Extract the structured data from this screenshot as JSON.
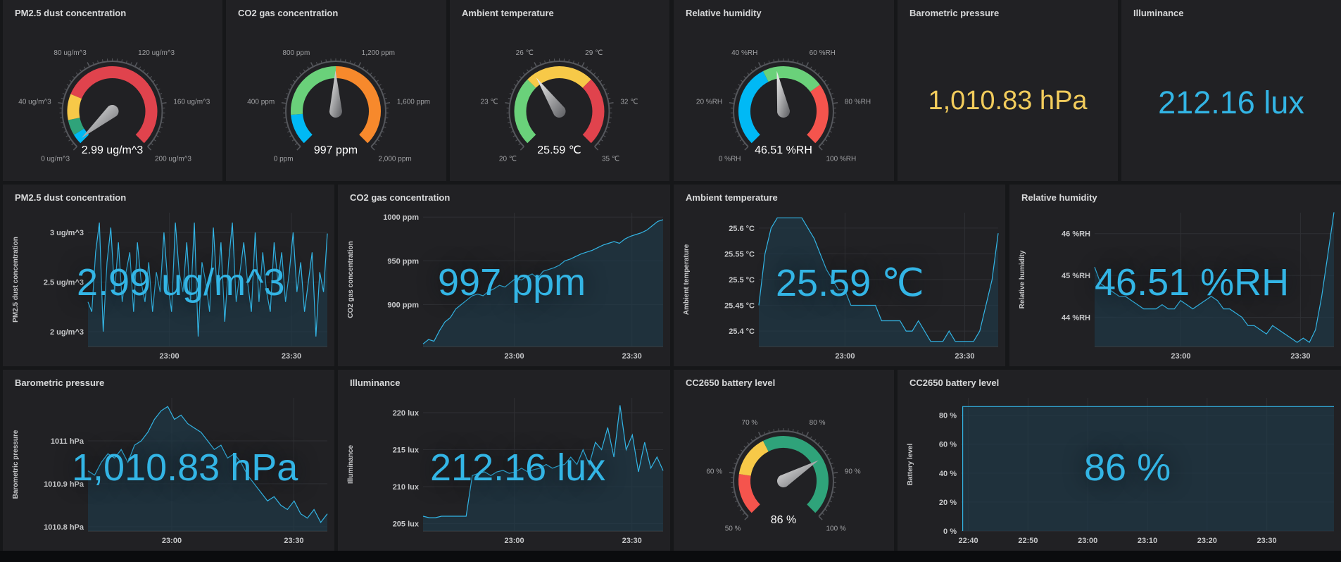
{
  "colors": {
    "panel_bg": "#212124",
    "line": "#33b5e5",
    "fill": "#1f3a4a",
    "text": "#d8d9da",
    "stat_yellow": "#f2cc5c",
    "stat_blue": "#33b5e5"
  },
  "gauges": [
    {
      "title": "PM2.5 dust concentration",
      "value_text": "2.99 ug/m^3",
      "value": 2.99,
      "min": 0,
      "max": 200,
      "ticks": [
        "0 ug/m^3",
        "40 ug/m^3",
        "80 ug/m^3",
        "120 ug/m^3",
        "160 ug/m^3",
        "200 ug/m^3"
      ],
      "bands": [
        {
          "from": 0,
          "to": 10,
          "color": "#00b9f5"
        },
        {
          "from": 10,
          "to": 25,
          "color": "#2fa37a"
        },
        {
          "from": 25,
          "to": 50,
          "color": "#f7c948"
        },
        {
          "from": 50,
          "to": 200,
          "color": "#e0434d"
        }
      ]
    },
    {
      "title": "CO2 gas concentration",
      "value_text": "997 ppm",
      "value": 997,
      "min": 0,
      "max": 2000,
      "ticks": [
        "0 ppm",
        "400 ppm",
        "800 ppm",
        "1,200 ppm",
        "1,600 ppm",
        "2,000 ppm"
      ],
      "bands": [
        {
          "from": 0,
          "to": 300,
          "color": "#00b9f5"
        },
        {
          "from": 300,
          "to": 1000,
          "color": "#6ad17a"
        },
        {
          "from": 1000,
          "to": 2000,
          "color": "#f7892c"
        }
      ]
    },
    {
      "title": "Ambient temperature",
      "value_text": "25.59 ℃",
      "value": 25.59,
      "min": 20,
      "max": 35,
      "ticks": [
        "20 ℃",
        "23 ℃",
        "26 ℃",
        "29 ℃",
        "32 ℃",
        "35 ℃"
      ],
      "bands": [
        {
          "from": 20,
          "to": 25,
          "color": "#6ad17a"
        },
        {
          "from": 25,
          "to": 30,
          "color": "#f7c948"
        },
        {
          "from": 30,
          "to": 35,
          "color": "#e0434d"
        }
      ]
    },
    {
      "title": "Relative humidity",
      "value_text": "46.51 %RH",
      "value": 46.51,
      "min": 0,
      "max": 100,
      "ticks": [
        "0 %RH",
        "20 %RH",
        "40 %RH",
        "60 %RH",
        "80 %RH",
        "100 %RH"
      ],
      "bands": [
        {
          "from": 0,
          "to": 40,
          "color": "#00b9f5"
        },
        {
          "from": 40,
          "to": 70,
          "color": "#6ad17a"
        },
        {
          "from": 70,
          "to": 100,
          "color": "#f5544d"
        }
      ]
    },
    {
      "title": "CC2650 battery level",
      "value_text": "86 %",
      "value": 86,
      "min": 50,
      "max": 100,
      "ticks": [
        "50 %",
        "60 %",
        "70 %",
        "80 %",
        "90 %",
        "100 %"
      ],
      "bands": [
        {
          "from": 50,
          "to": 60,
          "color": "#f5544d"
        },
        {
          "from": 60,
          "to": 70,
          "color": "#f7c948"
        },
        {
          "from": 70,
          "to": 100,
          "color": "#2fa37a"
        }
      ]
    }
  ],
  "stats": [
    {
      "title": "Barometric pressure",
      "value": "1,010.83 hPa",
      "color": "#f2cc5c"
    },
    {
      "title": "Illuminance",
      "value": "212.16 lux",
      "color": "#33b5e5"
    }
  ],
  "graphs": [
    {
      "title": "PM2.5 dust concentration",
      "ylabel": "PM2.5 dust concentration",
      "big": "2.99 ug/m^3",
      "yticks": [
        {
          "v": 2,
          "t": "2 ug/m^3"
        },
        {
          "v": 2.5,
          "t": "2.5 ug/m^3"
        },
        {
          "v": 3,
          "t": "3 ug/m^3"
        }
      ],
      "ylim": [
        1.85,
        3.2
      ],
      "xticks": [
        {
          "v": 0.34,
          "t": "23:00"
        },
        {
          "v": 0.85,
          "t": "23:30"
        }
      ],
      "values": [
        2.3,
        2.2,
        2.8,
        3.1,
        2.0,
        2.7,
        3.05,
        2.4,
        2.9,
        2.3,
        2.6,
        2.8,
        2.2,
        2.9,
        2.5,
        2.3,
        2.7,
        2.2,
        2.6,
        2.4,
        3.0,
        2.5,
        2.2,
        3.1,
        2.6,
        2.4,
        2.9,
        2.3,
        3.1,
        1.95,
        2.7,
        2.5,
        2.2,
        3.05,
        2.4,
        2.9,
        2.1,
        2.7,
        3.1,
        2.3,
        2.6,
        2.9,
        2.5,
        2.2,
        3.0,
        2.3,
        2.8,
        2.4,
        2.2,
        2.9,
        2.5,
        2.8,
        2.3,
        2.6,
        3.0,
        2.4,
        2.7,
        2.2,
        2.5,
        2.8,
        1.95,
        2.6,
        2.4,
        2.99
      ]
    },
    {
      "title": "CO2 gas concentration",
      "ylabel": "CO2 gas concentration",
      "big": "997 ppm",
      "yticks": [
        {
          "v": 900,
          "t": "900 ppm"
        },
        {
          "v": 950,
          "t": "950 ppm"
        },
        {
          "v": 1000,
          "t": "1000 ppm"
        }
      ],
      "ylim": [
        852,
        1005
      ],
      "xticks": [
        {
          "v": 0.38,
          "t": "23:00"
        },
        {
          "v": 0.87,
          "t": "23:30"
        }
      ],
      "values": [
        855,
        860,
        858,
        870,
        880,
        885,
        895,
        900,
        905,
        910,
        912,
        910,
        915,
        918,
        922,
        920,
        925,
        930,
        928,
        932,
        935,
        930,
        938,
        940,
        942,
        945,
        950,
        952,
        955,
        958,
        960,
        962,
        965,
        968,
        970,
        972,
        970,
        975,
        978,
        980,
        982,
        985,
        990,
        995,
        997
      ]
    },
    {
      "title": "Ambient temperature",
      "ylabel": "Ambient temperature",
      "big": "25.59 ℃",
      "yticks": [
        {
          "v": 25.4,
          "t": "25.4 °C"
        },
        {
          "v": 25.45,
          "t": "25.45 °C"
        },
        {
          "v": 25.5,
          "t": "25.5 °C"
        },
        {
          "v": 25.55,
          "t": "25.55 °C"
        },
        {
          "v": 25.6,
          "t": "25.6 °C"
        }
      ],
      "ylim": [
        25.37,
        25.63
      ],
      "xticks": [
        {
          "v": 0.36,
          "t": "23:00"
        },
        {
          "v": 0.86,
          "t": "23:30"
        }
      ],
      "values": [
        25.45,
        25.55,
        25.6,
        25.62,
        25.62,
        25.62,
        25.62,
        25.62,
        25.6,
        25.58,
        25.55,
        25.52,
        25.5,
        25.48,
        25.48,
        25.45,
        25.45,
        25.45,
        25.45,
        25.45,
        25.42,
        25.42,
        25.42,
        25.42,
        25.4,
        25.4,
        25.42,
        25.4,
        25.38,
        25.38,
        25.38,
        25.4,
        25.38,
        25.38,
        25.38,
        25.38,
        25.4,
        25.45,
        25.5,
        25.59
      ]
    },
    {
      "title": "Relative humidity",
      "ylabel": "Relative humidity",
      "big": "46.51 %RH",
      "yticks": [
        {
          "v": 44,
          "t": "44 %RH"
        },
        {
          "v": 45,
          "t": "45 %RH"
        },
        {
          "v": 46,
          "t": "46 %RH"
        }
      ],
      "ylim": [
        43.3,
        46.5
      ],
      "xticks": [
        {
          "v": 0.36,
          "t": "23:00"
        },
        {
          "v": 0.86,
          "t": "23:30"
        }
      ],
      "values": [
        45.2,
        44.8,
        44.7,
        44.6,
        44.5,
        44.5,
        44.4,
        44.3,
        44.2,
        44.2,
        44.2,
        44.3,
        44.2,
        44.2,
        44.4,
        44.3,
        44.2,
        44.3,
        44.4,
        44.5,
        44.4,
        44.2,
        44.2,
        44.1,
        44.0,
        43.8,
        43.8,
        43.7,
        43.6,
        43.8,
        43.7,
        43.6,
        43.5,
        43.4,
        43.5,
        43.4,
        43.7,
        44.5,
        45.5,
        46.51
      ]
    },
    {
      "title": "Barometric pressure",
      "ylabel": "Barometric pressure",
      "big": "1,010.83 hPa",
      "yticks": [
        {
          "v": 1010.8,
          "t": "1010.8 hPa"
        },
        {
          "v": 1010.9,
          "t": "1010.9 hPa"
        },
        {
          "v": 1011,
          "t": "1011 hPa"
        }
      ],
      "ylim": [
        1010.79,
        1011.1
      ],
      "xticks": [
        {
          "v": 0.35,
          "t": "23:00"
        },
        {
          "v": 0.86,
          "t": "23:30"
        }
      ],
      "values": [
        1010.93,
        1010.92,
        1010.95,
        1010.97,
        1010.96,
        1010.98,
        1010.95,
        1010.99,
        1011.0,
        1011.02,
        1011.05,
        1011.07,
        1011.08,
        1011.05,
        1011.06,
        1011.04,
        1011.03,
        1011.02,
        1011.0,
        1010.98,
        1010.99,
        1010.96,
        1010.97,
        1010.95,
        1010.92,
        1010.9,
        1010.88,
        1010.86,
        1010.87,
        1010.85,
        1010.84,
        1010.86,
        1010.83,
        1010.82,
        1010.84,
        1010.81,
        1010.83
      ]
    },
    {
      "title": "Illuminance",
      "ylabel": "Illuminance",
      "big": "212.16 lux",
      "yticks": [
        {
          "v": 205,
          "t": "205 lux"
        },
        {
          "v": 210,
          "t": "210 lux"
        },
        {
          "v": 215,
          "t": "215 lux"
        },
        {
          "v": 220,
          "t": "220 lux"
        }
      ],
      "ylim": [
        204,
        222
      ],
      "xticks": [
        {
          "v": 0.38,
          "t": "23:00"
        },
        {
          "v": 0.87,
          "t": "23:30"
        }
      ],
      "values": [
        206,
        205.8,
        205.8,
        206,
        206,
        206,
        206,
        206,
        211.5,
        211.8,
        212,
        211.5,
        212,
        212.2,
        211.8,
        212,
        212.5,
        212,
        212.3,
        212.5,
        213,
        212.5,
        212.8,
        213,
        214,
        213,
        215,
        213,
        216,
        215,
        218,
        214,
        221,
        215,
        217,
        212,
        216,
        212.5,
        214,
        212.16
      ]
    }
  ],
  "battery_graph": {
    "title": "CC2650 battery level",
    "ylabel": "Battery level",
    "big": "86 %",
    "yticks": [
      {
        "v": 0,
        "t": "0 %"
      },
      {
        "v": 20,
        "t": "20 %"
      },
      {
        "v": 40,
        "t": "40 %"
      },
      {
        "v": 60,
        "t": "60 %"
      },
      {
        "v": 80,
        "t": "80 %"
      }
    ],
    "ylim": [
      0,
      92
    ],
    "xticks": [
      {
        "v": 0.02,
        "t": "22:40"
      },
      {
        "v": 0.18,
        "t": "22:50"
      },
      {
        "v": 0.34,
        "t": "23:00"
      },
      {
        "v": 0.5,
        "t": "23:10"
      },
      {
        "v": 0.66,
        "t": "23:20"
      },
      {
        "v": 0.82,
        "t": "23:30"
      }
    ],
    "value": 86
  }
}
